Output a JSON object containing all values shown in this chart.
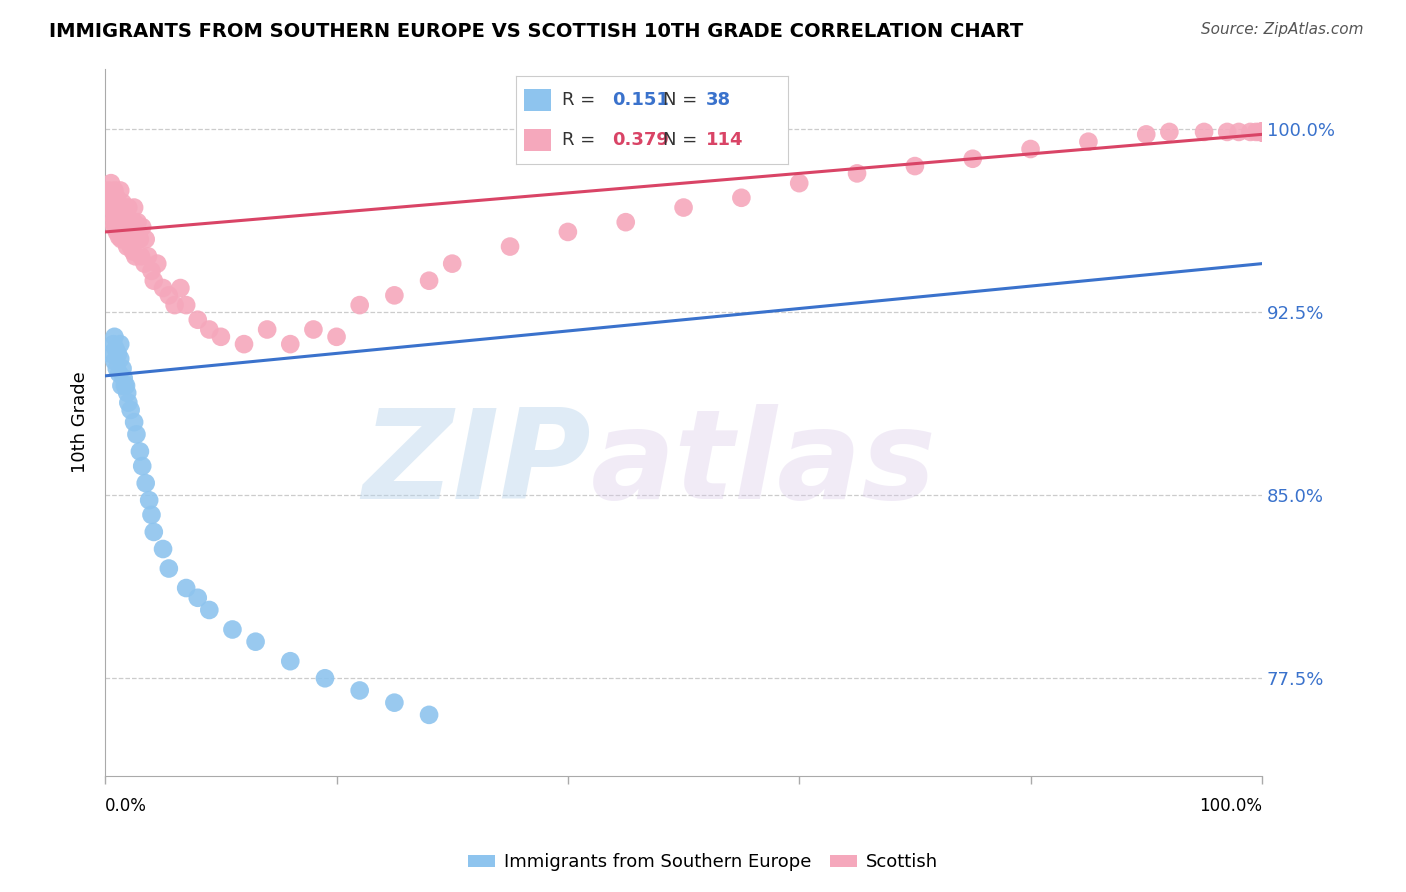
{
  "title": "IMMIGRANTS FROM SOUTHERN EUROPE VS SCOTTISH 10TH GRADE CORRELATION CHART",
  "source": "Source: ZipAtlas.com",
  "ylabel": "10th Grade",
  "yticks": [
    0.775,
    0.85,
    0.925,
    1.0
  ],
  "ytick_labels": [
    "77.5%",
    "85.0%",
    "92.5%",
    "100.0%"
  ],
  "xlim": [
    0.0,
    1.0
  ],
  "ylim": [
    0.735,
    1.025
  ],
  "blue_R": 0.151,
  "blue_N": 38,
  "pink_R": 0.379,
  "pink_N": 114,
  "blue_color": "#8EC4EE",
  "pink_color": "#F5A8BC",
  "blue_line_color": "#3A72CC",
  "pink_line_color": "#D94466",
  "legend_blue_label": "Immigrants from Southern Europe",
  "legend_pink_label": "Scottish",
  "watermark_zip": "ZIP",
  "watermark_atlas": "atlas",
  "background_color": "#ffffff",
  "blue_scatter_x": [
    0.005,
    0.007,
    0.008,
    0.008,
    0.009,
    0.01,
    0.011,
    0.012,
    0.013,
    0.013,
    0.014,
    0.015,
    0.016,
    0.017,
    0.018,
    0.019,
    0.02,
    0.022,
    0.025,
    0.027,
    0.03,
    0.032,
    0.035,
    0.038,
    0.04,
    0.042,
    0.05,
    0.055,
    0.07,
    0.08,
    0.09,
    0.11,
    0.13,
    0.16,
    0.19,
    0.22,
    0.25,
    0.28
  ],
  "blue_scatter_y": [
    0.908,
    0.912,
    0.905,
    0.915,
    0.91,
    0.902,
    0.908,
    0.9,
    0.906,
    0.912,
    0.895,
    0.902,
    0.898,
    0.895,
    0.895,
    0.892,
    0.888,
    0.885,
    0.88,
    0.875,
    0.868,
    0.862,
    0.855,
    0.848,
    0.842,
    0.835,
    0.828,
    0.82,
    0.812,
    0.808,
    0.803,
    0.795,
    0.79,
    0.782,
    0.775,
    0.77,
    0.765,
    0.76
  ],
  "pink_scatter_x": [
    0.003,
    0.004,
    0.005,
    0.005,
    0.006,
    0.006,
    0.007,
    0.007,
    0.008,
    0.008,
    0.008,
    0.009,
    0.009,
    0.01,
    0.01,
    0.01,
    0.011,
    0.011,
    0.012,
    0.012,
    0.013,
    0.013,
    0.013,
    0.014,
    0.014,
    0.015,
    0.015,
    0.015,
    0.016,
    0.016,
    0.017,
    0.017,
    0.018,
    0.018,
    0.019,
    0.02,
    0.02,
    0.021,
    0.022,
    0.022,
    0.023,
    0.023,
    0.024,
    0.025,
    0.025,
    0.026,
    0.027,
    0.028,
    0.03,
    0.031,
    0.032,
    0.034,
    0.035,
    0.037,
    0.04,
    0.042,
    0.045,
    0.05,
    0.055,
    0.06,
    0.065,
    0.07,
    0.08,
    0.09,
    0.1,
    0.12,
    0.14,
    0.16,
    0.18,
    0.2,
    0.22,
    0.25,
    0.28,
    0.3,
    0.35,
    0.4,
    0.45,
    0.5,
    0.55,
    0.6,
    0.65,
    0.7,
    0.75,
    0.8,
    0.85,
    0.9,
    0.92,
    0.95,
    0.97,
    0.98,
    0.99,
    0.995,
    0.998,
    1.0,
    1.0,
    1.0,
    1.0,
    1.0,
    1.0,
    1.0,
    1.0,
    1.0,
    1.0,
    1.0,
    1.0,
    1.0,
    1.0,
    1.0,
    1.0,
    1.0,
    1.0,
    1.0
  ],
  "pink_scatter_y": [
    0.975,
    0.97,
    0.968,
    0.978,
    0.965,
    0.972,
    0.962,
    0.97,
    0.968,
    0.975,
    0.96,
    0.964,
    0.972,
    0.958,
    0.965,
    0.972,
    0.962,
    0.968,
    0.956,
    0.963,
    0.96,
    0.968,
    0.975,
    0.955,
    0.963,
    0.97,
    0.958,
    0.965,
    0.96,
    0.968,
    0.955,
    0.962,
    0.958,
    0.965,
    0.952,
    0.962,
    0.968,
    0.958,
    0.952,
    0.96,
    0.955,
    0.962,
    0.95,
    0.962,
    0.968,
    0.948,
    0.958,
    0.962,
    0.955,
    0.948,
    0.96,
    0.945,
    0.955,
    0.948,
    0.942,
    0.938,
    0.945,
    0.935,
    0.932,
    0.928,
    0.935,
    0.928,
    0.922,
    0.918,
    0.915,
    0.912,
    0.918,
    0.912,
    0.918,
    0.915,
    0.928,
    0.932,
    0.938,
    0.945,
    0.952,
    0.958,
    0.962,
    0.968,
    0.972,
    0.978,
    0.982,
    0.985,
    0.988,
    0.992,
    0.995,
    0.998,
    0.999,
    0.999,
    0.999,
    0.999,
    0.999,
    0.999,
    0.999,
    0.999,
    0.999,
    0.999,
    0.999,
    0.999,
    0.999,
    0.999,
    0.999,
    0.999,
    0.999,
    0.999,
    0.999,
    0.999,
    0.999,
    0.999,
    0.999,
    0.999,
    0.999,
    0.999
  ]
}
